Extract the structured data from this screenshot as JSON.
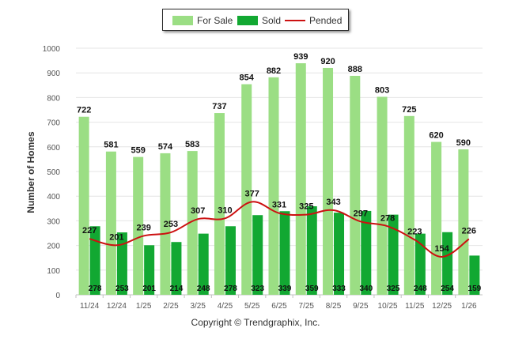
{
  "chart_data": {
    "type": "bar",
    "ylabel": "Number of Homes",
    "xlabel": "",
    "ylim": [
      0,
      1000
    ],
    "yticks": [
      0,
      100,
      200,
      300,
      400,
      500,
      600,
      700,
      800,
      900,
      1000
    ],
    "categories": [
      "11/24",
      "12/24",
      "1/25",
      "2/25",
      "3/25",
      "4/25",
      "5/25",
      "6/25",
      "7/25",
      "8/25",
      "9/25",
      "10/25",
      "11/25",
      "12/25",
      "1/26"
    ],
    "series": [
      {
        "name": "For Sale",
        "type": "bar",
        "color": "#9bde84",
        "values": [
          722,
          581,
          559,
          574,
          583,
          737,
          854,
          882,
          939,
          920,
          888,
          803,
          725,
          620,
          590
        ]
      },
      {
        "name": "Sold",
        "type": "bar",
        "color": "#12a832",
        "values": [
          278,
          253,
          201,
          214,
          248,
          278,
          323,
          339,
          359,
          333,
          340,
          325,
          248,
          254,
          159
        ]
      },
      {
        "name": "Pended",
        "type": "line",
        "color": "#cc1111",
        "values": [
          227,
          201,
          239,
          253,
          307,
          310,
          377,
          331,
          325,
          343,
          297,
          278,
          223,
          154,
          226
        ]
      }
    ],
    "grid": true,
    "legend_position": "top-center"
  },
  "legend": {
    "for_sale": "For Sale",
    "sold": "Sold",
    "pended": "Pended"
  },
  "footer": {
    "copyright": "Copyright © Trendgraphix, Inc."
  }
}
